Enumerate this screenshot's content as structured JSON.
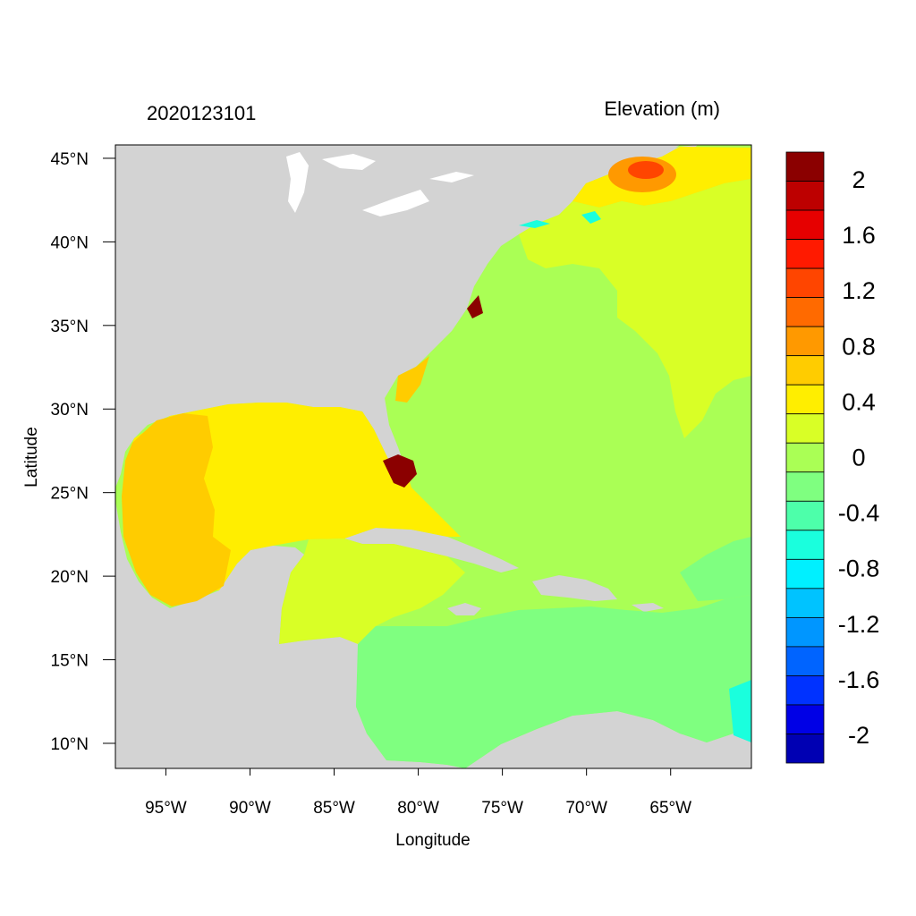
{
  "header": {
    "left_title": "2020123101",
    "right_title": "Elevation (m)"
  },
  "axes": {
    "xlabel": "Longitude",
    "ylabel": "Latitude",
    "xticks": [
      {
        "value": -95,
        "label": "95°W"
      },
      {
        "value": -90,
        "label": "90°W"
      },
      {
        "value": -85,
        "label": "85°W"
      },
      {
        "value": -80,
        "label": "80°W"
      },
      {
        "value": -75,
        "label": "75°W"
      },
      {
        "value": -70,
        "label": "70°W"
      },
      {
        "value": -65,
        "label": "65°W"
      }
    ],
    "yticks": [
      {
        "value": 45,
        "label": "45°N"
      },
      {
        "value": 40,
        "label": "40°N"
      },
      {
        "value": 35,
        "label": "35°N"
      },
      {
        "value": 30,
        "label": "30°N"
      },
      {
        "value": 25,
        "label": "25°N"
      },
      {
        "value": 20,
        "label": "20°N"
      },
      {
        "value": 15,
        "label": "15°N"
      },
      {
        "value": 10,
        "label": "10°N"
      }
    ],
    "xlim": [
      -98,
      -60.2
    ],
    "ylim": [
      8.5,
      45.8
    ]
  },
  "colorbar": {
    "label_values": [
      2,
      1.6,
      1.2,
      0.8,
      0.4,
      0,
      -0.4,
      -0.8,
      -1.2,
      -1.6,
      -2
    ],
    "labels": [
      "2",
      "1.6",
      "1.2",
      "0.8",
      "0.4",
      "0",
      "-0.4",
      "-0.8",
      "-1.2",
      "-1.6",
      "-2"
    ],
    "colors_top_to_bottom": [
      "#8b0000",
      "#bd0000",
      "#e60000",
      "#ff1a00",
      "#ff4500",
      "#ff6a00",
      "#ff9900",
      "#ffcc00",
      "#ffee00",
      "#d9ff26",
      "#aaff55",
      "#7fff80",
      "#4dffaa",
      "#1affdd",
      "#00f0ff",
      "#00c3ff",
      "#0096ff",
      "#0064ff",
      "#0032ff",
      "#0000e6",
      "#0000b3"
    ]
  },
  "map_colors": {
    "land": "#d3d3d3",
    "water_lakes": "#ffffff",
    "dark_red": "#8b0000",
    "orange_gold": "#ffcc00",
    "yellow": "#ffee00",
    "yellow_green": "#d9ff26",
    "green": "#aaff55",
    "light_green": "#7fff80",
    "cyan": "#1affdd"
  }
}
